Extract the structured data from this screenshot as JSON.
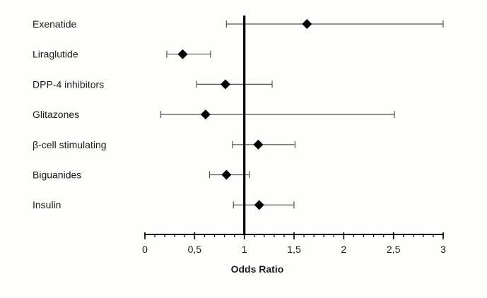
{
  "chart_data": {
    "type": "forest",
    "xlabel": "Odds Ratio",
    "xlim": [
      0,
      3
    ],
    "xticks": [
      0,
      0.5,
      1,
      1.5,
      2,
      2.5,
      3
    ],
    "xtick_labels": [
      "0",
      "0,5",
      "1",
      "1,5",
      "2",
      "2,5",
      "3"
    ],
    "minor_tick_step": 0.1,
    "reference_line": 1,
    "rows": [
      {
        "label": "Exenatide",
        "estimate": 1.63,
        "lower": 0.82,
        "upper": 3.0
      },
      {
        "label": "Liraglutide",
        "estimate": 0.38,
        "lower": 0.22,
        "upper": 0.66
      },
      {
        "label": "DPP-4 inhibitors",
        "estimate": 0.81,
        "lower": 0.52,
        "upper": 1.28
      },
      {
        "label": "Glitazones",
        "estimate": 0.61,
        "lower": 0.16,
        "upper": 2.51
      },
      {
        "label": "β-cell stimulating",
        "estimate": 1.14,
        "lower": 0.88,
        "upper": 1.51
      },
      {
        "label": "Biguanides",
        "estimate": 0.82,
        "lower": 0.65,
        "upper": 1.05
      },
      {
        "label": "Insulin",
        "estimate": 1.15,
        "lower": 0.89,
        "upper": 1.5
      }
    ],
    "colors": {
      "marker": "#000000",
      "ci_line": "#555555",
      "axis": "#000000",
      "reference_line": "#000000"
    }
  }
}
